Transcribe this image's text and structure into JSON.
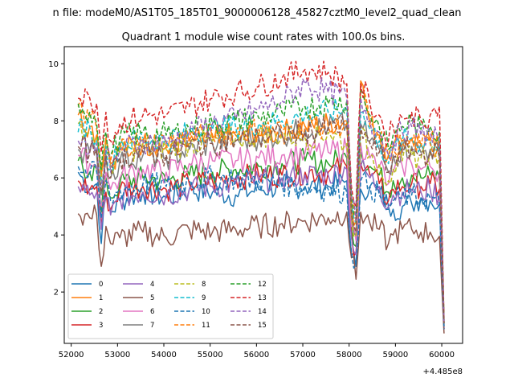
{
  "figure": {
    "suptitle": "n file: modeM0/AS1T05_185T01_9000006128_45827cztM0_level2_quad_clean",
    "title": "Quadrant 1 module wise count rates with 100.0s bins.",
    "offset_label": "+4.485e8"
  },
  "chart_data": {
    "type": "line",
    "title": "Quadrant 1 module wise count rates with 100.0s bins.",
    "xlabel": "",
    "ylabel": "",
    "x_offset": 448500000,
    "xlim": [
      51850,
      60450
    ],
    "ylim": [
      0.2,
      10.6
    ],
    "xticks": [
      52000,
      53000,
      54000,
      55000,
      56000,
      57000,
      58000,
      59000,
      60000
    ],
    "xtick_labels": [
      "52000",
      "53000",
      "54000",
      "55000",
      "56000",
      "57000",
      "58000",
      "59000",
      "60000"
    ],
    "yticks": [
      2,
      4,
      6,
      8,
      10
    ],
    "ytick_labels": [
      "2",
      "4",
      "6",
      "8",
      "10"
    ],
    "legend_location": "lower-left",
    "legend_columns": 4,
    "x_key_points": [
      52150,
      52400,
      52550,
      52650,
      52750,
      52850,
      53050,
      53550,
      54050,
      54550,
      55050,
      55550,
      56050,
      56550,
      57050,
      57550,
      57950,
      58050,
      58150,
      58250,
      58450,
      58650,
      58850,
      58950,
      59150,
      59350,
      59550,
      59750,
      59950,
      60050
    ],
    "series": [
      {
        "name": "0",
        "color": "#1f77b4",
        "dash": "solid",
        "values": [
          6.2,
          5.6,
          5.8,
          3.7,
          5.4,
          4.8,
          5.2,
          5.5,
          5.3,
          5.6,
          5.5,
          5.4,
          5.6,
          5.7,
          5.7,
          5.7,
          5.9,
          3.3,
          2.9,
          5.6,
          5.7,
          5.5,
          5.0,
          4.9,
          5.0,
          5.1,
          5.3,
          5.2,
          5.1,
          0.8
        ]
      },
      {
        "name": "1",
        "color": "#ff7f0e",
        "dash": "solid",
        "values": [
          8.2,
          7.8,
          7.5,
          6.2,
          7.4,
          6.5,
          7.0,
          7.2,
          7.1,
          7.3,
          7.4,
          7.5,
          7.5,
          7.6,
          7.8,
          7.9,
          8.0,
          5.0,
          4.5,
          9.4,
          7.9,
          7.5,
          6.8,
          7.1,
          7.3,
          7.4,
          7.2,
          7.3,
          7.0,
          0.9
        ]
      },
      {
        "name": "2",
        "color": "#2ca02c",
        "dash": "solid",
        "values": [
          6.6,
          6.2,
          6.3,
          4.8,
          6.0,
          5.3,
          5.8,
          6.0,
          5.9,
          6.1,
          6.2,
          6.3,
          6.4,
          6.5,
          6.6,
          6.5,
          6.7,
          4.2,
          3.6,
          6.9,
          6.4,
          6.1,
          5.5,
          5.9,
          6.0,
          6.1,
          6.0,
          6.1,
          6.0,
          0.8
        ]
      },
      {
        "name": "3",
        "color": "#d62728",
        "dash": "solid",
        "values": [
          5.9,
          5.6,
          5.7,
          4.3,
          5.5,
          4.9,
          5.6,
          5.7,
          5.6,
          5.8,
          5.9,
          6.0,
          6.1,
          6.1,
          6.2,
          6.2,
          6.4,
          4.0,
          3.4,
          6.5,
          6.1,
          5.8,
          5.2,
          5.6,
          5.7,
          5.8,
          5.7,
          5.8,
          5.6,
          0.7
        ]
      },
      {
        "name": "4",
        "color": "#9467bd",
        "dash": "solid",
        "values": [
          5.7,
          5.4,
          5.5,
          4.2,
          5.3,
          4.7,
          5.3,
          5.5,
          5.4,
          5.6,
          5.7,
          5.8,
          5.9,
          6.0,
          6.1,
          6.1,
          6.3,
          3.9,
          3.3,
          6.4,
          6.0,
          5.7,
          5.0,
          5.4,
          5.5,
          5.6,
          5.5,
          5.6,
          5.4,
          0.7
        ]
      },
      {
        "name": "5",
        "color": "#8c564b",
        "dash": "solid",
        "values": [
          4.75,
          4.6,
          4.7,
          2.9,
          4.3,
          3.7,
          3.9,
          4.1,
          3.9,
          4.2,
          4.1,
          4.2,
          4.3,
          4.4,
          4.5,
          4.6,
          4.8,
          3.2,
          2.45,
          4.8,
          4.4,
          4.2,
          3.7,
          4.0,
          4.2,
          4.2,
          4.1,
          4.1,
          3.95,
          0.55
        ]
      },
      {
        "name": "6",
        "color": "#e377c2",
        "dash": "solid",
        "values": [
          6.8,
          6.5,
          6.4,
          5.0,
          6.2,
          5.6,
          6.0,
          6.3,
          6.2,
          6.5,
          6.6,
          6.6,
          6.7,
          6.8,
          6.9,
          6.9,
          7.0,
          4.3,
          3.8,
          7.2,
          6.7,
          6.4,
          5.8,
          6.2,
          6.4,
          6.5,
          6.3,
          6.4,
          6.2,
          0.8
        ]
      },
      {
        "name": "7",
        "color": "#7f7f7f",
        "dash": "solid",
        "values": [
          7.0,
          6.9,
          6.8,
          5.4,
          6.7,
          6.0,
          6.6,
          6.8,
          6.7,
          7.0,
          7.2,
          7.3,
          7.4,
          7.5,
          7.7,
          7.8,
          7.9,
          4.6,
          4.0,
          7.9,
          7.3,
          7.0,
          6.2,
          6.8,
          7.0,
          7.1,
          6.9,
          7.0,
          6.8,
          0.9
        ]
      },
      {
        "name": "8",
        "color": "#bcbd22",
        "dash": "dashed",
        "values": [
          7.9,
          7.6,
          7.4,
          5.9,
          7.2,
          6.4,
          6.9,
          7.1,
          7.0,
          7.2,
          7.3,
          7.4,
          7.5,
          7.5,
          7.4,
          7.6,
          7.2,
          4.6,
          4.0,
          7.6,
          6.8,
          6.5,
          5.9,
          6.3,
          6.6,
          6.8,
          6.7,
          6.9,
          6.8,
          0.9
        ]
      },
      {
        "name": "9",
        "color": "#17becf",
        "dash": "dashed",
        "values": [
          7.6,
          7.8,
          7.3,
          5.8,
          7.1,
          6.3,
          7.2,
          7.4,
          7.3,
          7.6,
          7.7,
          7.8,
          7.9,
          8.0,
          8.2,
          8.3,
          8.4,
          5.1,
          4.4,
          8.3,
          7.7,
          7.3,
          6.5,
          7.0,
          7.3,
          7.4,
          7.2,
          7.3,
          7.1,
          0.9
        ]
      },
      {
        "name": "10",
        "color": "#1f77b4",
        "dash": "dashed",
        "values": [
          6.4,
          6.1,
          6.2,
          4.6,
          5.9,
          5.2,
          5.6,
          5.8,
          5.7,
          5.9,
          6.0,
          6.0,
          5.9,
          5.8,
          5.7,
          5.6,
          5.5,
          3.4,
          3.0,
          5.9,
          5.7,
          5.4,
          4.9,
          5.2,
          5.3,
          5.4,
          5.3,
          5.3,
          5.1,
          0.7
        ]
      },
      {
        "name": "11",
        "color": "#ff7f0e",
        "dash": "dashed",
        "values": [
          8.5,
          8.1,
          7.7,
          6.1,
          7.4,
          6.6,
          7.1,
          7.3,
          7.2,
          7.4,
          7.5,
          7.6,
          7.7,
          7.7,
          7.8,
          7.8,
          7.9,
          5.0,
          4.4,
          9.3,
          7.8,
          7.4,
          6.7,
          7.0,
          7.2,
          7.3,
          7.1,
          7.2,
          7.0,
          0.9
        ]
      },
      {
        "name": "12",
        "color": "#2ca02c",
        "dash": "dashed",
        "values": [
          8.6,
          8.3,
          7.9,
          6.3,
          7.6,
          6.8,
          7.4,
          7.6,
          7.5,
          7.7,
          7.9,
          8.0,
          8.1,
          8.3,
          8.5,
          8.6,
          8.7,
          5.4,
          4.7,
          9.1,
          8.2,
          7.8,
          7.0,
          7.5,
          7.8,
          8.0,
          7.7,
          7.8,
          7.6,
          1.0
        ]
      },
      {
        "name": "13",
        "color": "#d62728",
        "dash": "dashed",
        "values": [
          8.8,
          8.8,
          8.6,
          6.9,
          8.3,
          7.3,
          7.9,
          8.2,
          8.2,
          8.5,
          8.8,
          9.0,
          9.2,
          9.5,
          9.8,
          9.7,
          9.3,
          5.7,
          5.0,
          9.3,
          8.6,
          8.2,
          7.3,
          7.8,
          8.1,
          8.3,
          8.0,
          8.2,
          8.5,
          1.0
        ]
      },
      {
        "name": "14",
        "color": "#9467bd",
        "dash": "dashed",
        "values": [
          7.3,
          7.0,
          7.2,
          5.7,
          7.0,
          6.2,
          7.0,
          7.3,
          7.2,
          7.6,
          7.9,
          8.1,
          8.4,
          8.7,
          9.3,
          9.0,
          8.8,
          5.2,
          4.5,
          8.8,
          8.0,
          7.6,
          6.8,
          7.3,
          7.6,
          7.8,
          7.5,
          7.6,
          7.4,
          0.9
        ]
      },
      {
        "name": "15",
        "color": "#8c564b",
        "dash": "dashed",
        "values": [
          7.1,
          6.9,
          7.0,
          5.5,
          6.8,
          6.0,
          6.7,
          6.9,
          6.8,
          7.1,
          7.2,
          7.3,
          7.4,
          7.5,
          7.6,
          7.7,
          7.8,
          4.7,
          4.1,
          7.8,
          7.2,
          6.9,
          6.2,
          6.7,
          6.9,
          7.0,
          6.8,
          6.9,
          6.7,
          0.9
        ]
      }
    ]
  }
}
